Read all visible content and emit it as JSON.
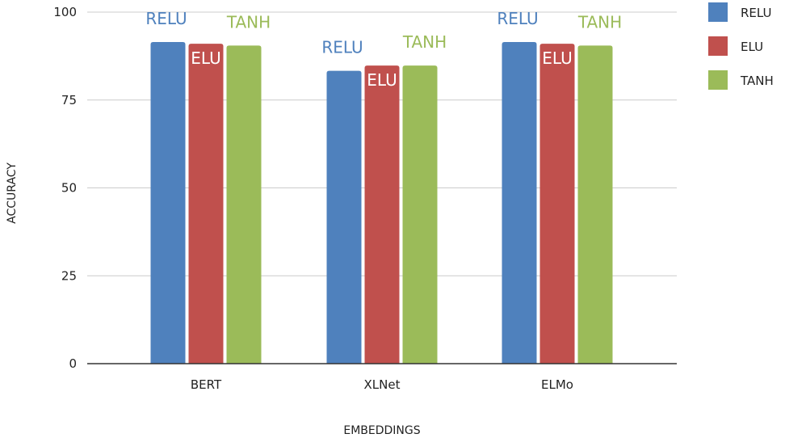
{
  "chart_data": {
    "type": "bar",
    "categories": [
      "BERT",
      "XLNet",
      "ELMo"
    ],
    "series": [
      {
        "name": "RELU",
        "color": "#4f81bd",
        "values": [
          91.5,
          83.3,
          91.5
        ]
      },
      {
        "name": "ELU",
        "color": "#c0504d",
        "values": [
          91.0,
          84.8,
          91.0
        ]
      },
      {
        "name": "TANH",
        "color": "#9bbb59",
        "values": [
          90.5,
          84.8,
          90.5
        ]
      }
    ],
    "data_labels": [
      [
        "RELU",
        "ELU",
        "TANH"
      ],
      [
        "RELU",
        "ELU",
        "TANH"
      ],
      [
        "RELU",
        "ELU",
        "TANH"
      ]
    ],
    "xlabel": "EMBEDDINGS",
    "ylabel": "ACCURACY",
    "ylim": [
      0,
      100
    ],
    "yticks": [
      0,
      25,
      50,
      75,
      100
    ],
    "grid": true,
    "legend": "right"
  }
}
